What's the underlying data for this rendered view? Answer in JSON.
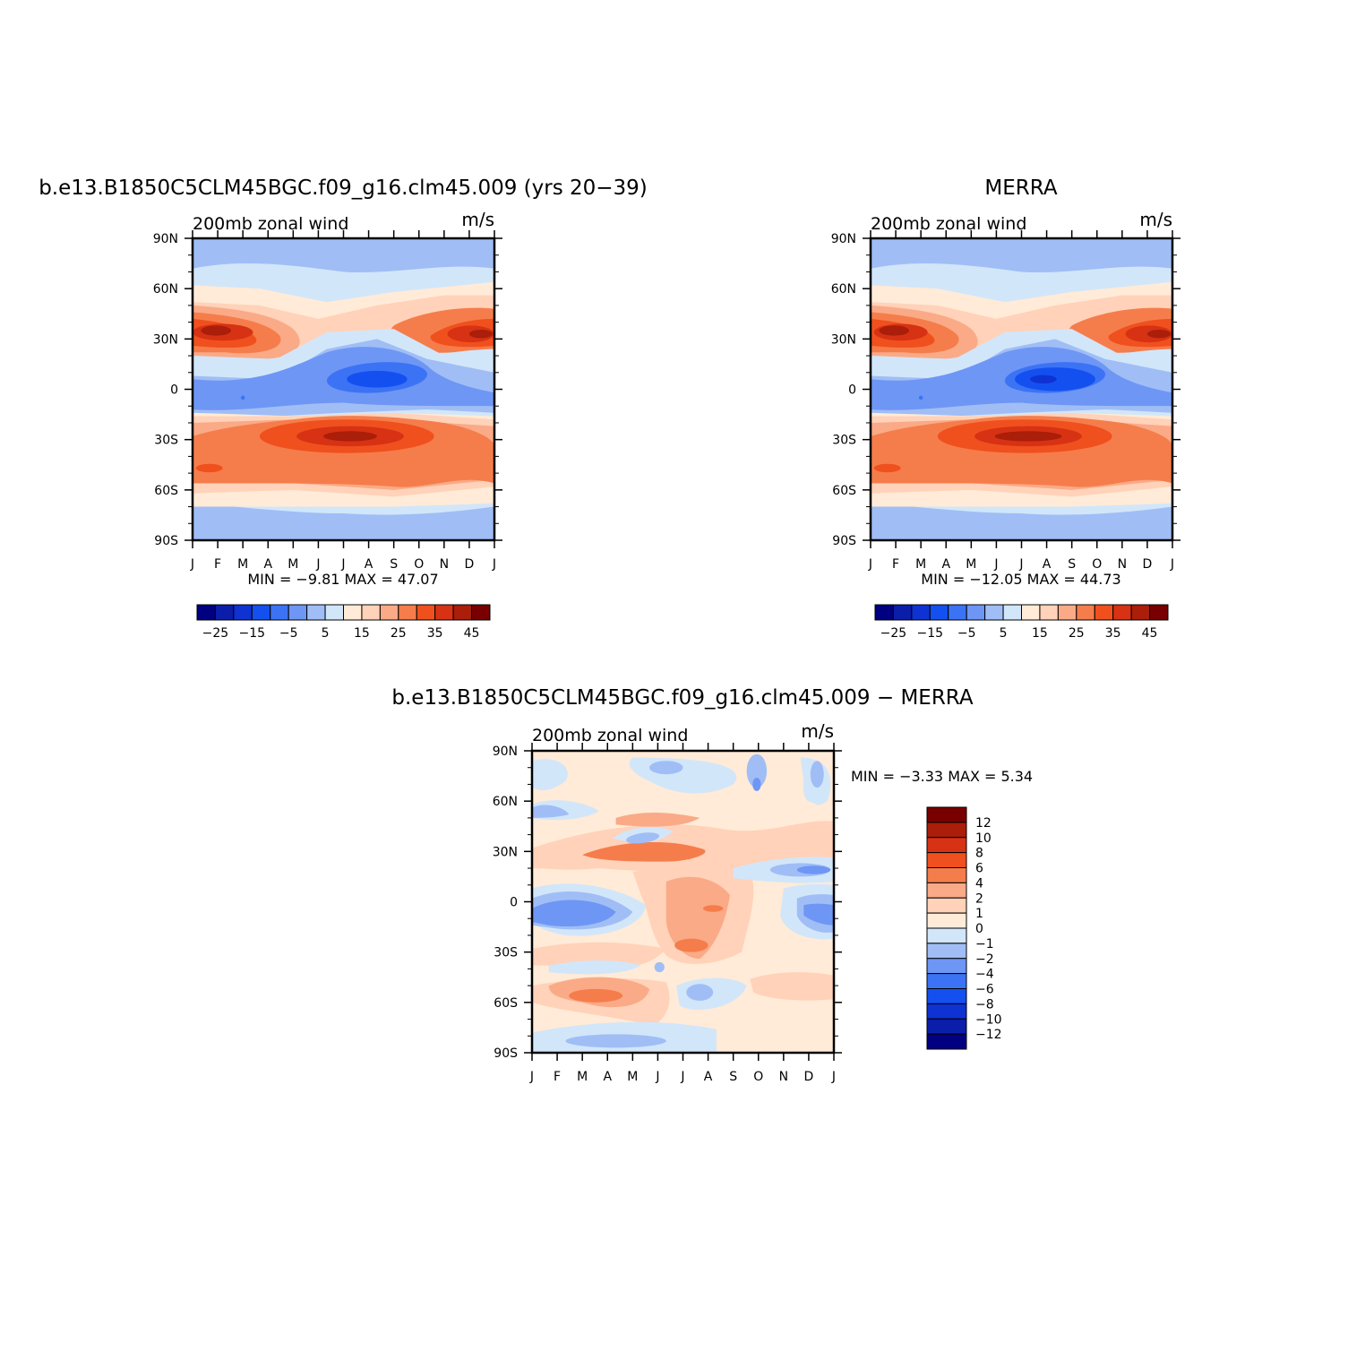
{
  "panels": [
    {
      "id": "model",
      "title": "b.e13.B1850C5CLM45BGC.f09_g16.clm45.009 (yrs 20−39)",
      "left_label": "200mb zonal wind",
      "right_label": "m/s",
      "stats_text": "MIN =   −9.81  MAX =    47.07",
      "colorbar_tick_labels": [
        "−25",
        "−15",
        "−5",
        "5",
        "15",
        "25",
        "35",
        "45"
      ]
    },
    {
      "id": "obs",
      "title": "MERRA",
      "left_label": "200mb zonal wind",
      "right_label": "m/s",
      "stats_text": "MIN =  −12.05  MAX =    44.73",
      "colorbar_tick_labels": [
        "−25",
        "−15",
        "−5",
        "5",
        "15",
        "25",
        "35",
        "45"
      ]
    },
    {
      "id": "diff",
      "title": "b.e13.B1850C5CLM45BGC.f09_g16.clm45.009 − MERRA",
      "left_label": "200mb zonal wind",
      "right_label": "m/s",
      "stats_text": "MIN =   −3.33  MAX =    5.34",
      "colorbar_tick_labels": [
        "12",
        "10",
        "8",
        "6",
        "4",
        "2",
        "1",
        "0",
        "−1",
        "−2",
        "−4",
        "−6",
        "−8",
        "−10",
        "−12"
      ]
    }
  ],
  "chart_data": [
    {
      "type": "heatmap",
      "title": "b.e13.B1850C5CLM45BGC.f09_g16.clm45.009 (yrs 20−39)",
      "subtitle": "200mb zonal wind",
      "units": "m/s",
      "x_tick_labels": [
        "J",
        "F",
        "M",
        "A",
        "M",
        "J",
        "J",
        "A",
        "S",
        "O",
        "N",
        "D",
        "J"
      ],
      "y_tick_labels": [
        "90N",
        "60N",
        "30N",
        "0",
        "30S",
        "60S",
        "90S"
      ],
      "ylim": [
        -90,
        90
      ],
      "min": -9.81,
      "max": 47.07,
      "contour_levels": [
        -30,
        -25,
        -20,
        -15,
        -10,
        -5,
        0,
        5,
        10,
        15,
        20,
        25,
        30,
        35,
        40,
        45,
        50
      ],
      "colors": [
        "#000080",
        "#0a1eaa",
        "#0f32d2",
        "#1450f0",
        "#3c73f5",
        "#6e96f5",
        "#a0bef5",
        "#d2e6fa",
        "#ffebd7",
        "#ffd2b9",
        "#faaa87",
        "#f57d4b",
        "#f0501e",
        "#d73214",
        "#aa1e0a",
        "#780000"
      ],
      "features": [
        {
          "name": "NH subtropical jet winter core",
          "month": 1.3,
          "lat": 30,
          "u": 47
        },
        {
          "name": "NH subtropical jet Dec core",
          "month": 12.3,
          "lat": 32,
          "u": 44
        },
        {
          "name": "SH subtropical jet winter core",
          "month": 7.1,
          "lat": -29,
          "u": 46
        },
        {
          "name": "Tropical easterlies minimum",
          "month": 7.5,
          "lat": 10,
          "u": -10
        }
      ]
    },
    {
      "type": "heatmap",
      "title": "MERRA",
      "subtitle": "200mb zonal wind",
      "units": "m/s",
      "x_tick_labels": [
        "J",
        "F",
        "M",
        "A",
        "M",
        "J",
        "J",
        "A",
        "S",
        "O",
        "N",
        "D",
        "J"
      ],
      "y_tick_labels": [
        "90N",
        "60N",
        "30N",
        "0",
        "30S",
        "60S",
        "90S"
      ],
      "ylim": [
        -90,
        90
      ],
      "min": -12.05,
      "max": 44.73,
      "contour_levels": [
        -30,
        -25,
        -20,
        -15,
        -10,
        -5,
        0,
        5,
        10,
        15,
        20,
        25,
        30,
        35,
        40,
        45,
        50
      ],
      "colors": [
        "#000080",
        "#0a1eaa",
        "#0f32d2",
        "#1450f0",
        "#3c73f5",
        "#6e96f5",
        "#a0bef5",
        "#d2e6fa",
        "#ffebd7",
        "#ffd2b9",
        "#faaa87",
        "#f57d4b",
        "#f0501e",
        "#d73214",
        "#aa1e0a",
        "#780000"
      ],
      "features": [
        {
          "name": "NH subtropical jet winter core",
          "month": 1.3,
          "lat": 30,
          "u": 44
        },
        {
          "name": "NH subtropical jet Dec core",
          "month": 12.3,
          "lat": 32,
          "u": 42
        },
        {
          "name": "SH subtropical jet winter core",
          "month": 7.1,
          "lat": -29,
          "u": 42
        },
        {
          "name": "Tropical easterlies minimum",
          "month": 7.5,
          "lat": 6,
          "u": -12
        }
      ]
    },
    {
      "type": "heatmap",
      "title": "b.e13.B1850C5CLM45BGC.f09_g16.clm45.009 − MERRA",
      "subtitle": "200mb zonal wind",
      "units": "m/s",
      "x_tick_labels": [
        "J",
        "F",
        "M",
        "A",
        "M",
        "J",
        "J",
        "A",
        "S",
        "O",
        "N",
        "D",
        "J"
      ],
      "y_tick_labels": [
        "90N",
        "60N",
        "30N",
        "0",
        "30S",
        "60S",
        "90S"
      ],
      "ylim": [
        -90,
        90
      ],
      "min": -3.33,
      "max": 5.34,
      "contour_levels": [
        -14,
        -12,
        -10,
        -8,
        -6,
        -4,
        -2,
        -1,
        0,
        1,
        2,
        4,
        6,
        8,
        10,
        12,
        14
      ],
      "colors": [
        "#000080",
        "#0a1eaa",
        "#0f32d2",
        "#1450f0",
        "#3c73f5",
        "#6e96f5",
        "#a0bef5",
        "#d2e6fa",
        "#ffebd7",
        "#ffd2b9",
        "#faaa87",
        "#f57d4b",
        "#f0501e",
        "#d73214",
        "#aa1e0a",
        "#780000"
      ],
      "features": [
        {
          "name": "NH subtropics positive bias",
          "month": 4.5,
          "lat": 25,
          "u": 4.5
        },
        {
          "name": "Tropical positive bias",
          "month": 7.1,
          "lat": -25,
          "u": 5
        },
        {
          "name": "Tropical negative bias west",
          "month": 2.3,
          "lat": -12,
          "u": -2.5
        },
        {
          "name": "Tropical negative bias east",
          "month": 12,
          "lat": -12,
          "u": -2.5
        },
        {
          "name": "SH midlatitude positive bias",
          "month": 2.8,
          "lat": -55,
          "u": 4.5
        }
      ]
    }
  ]
}
